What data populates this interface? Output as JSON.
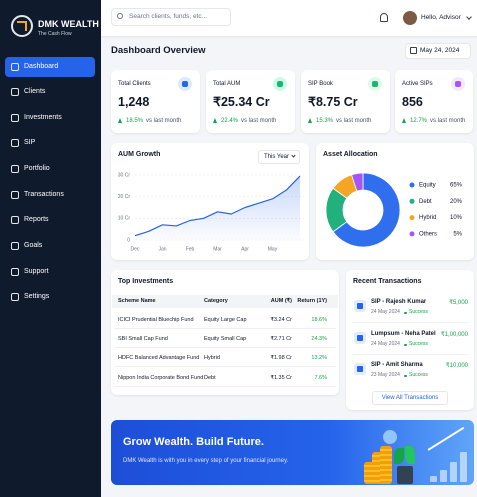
{
  "brand": {
    "name": "DMK WEALTH",
    "tagline": "The Cash Flow"
  },
  "nav": [
    "Dashboard",
    "Clients",
    "Investments",
    "SIP",
    "Portfolio",
    "Transactions",
    "Reports",
    "Goals",
    "Support",
    "Settings"
  ],
  "search_placeholder": "Search clients, funds, etc...",
  "user": "Hello, Advisor",
  "page_title": "Dashboard Overview",
  "date": "May 24, 2024",
  "kpis": [
    {
      "label": "Total Clients",
      "value": "1,248",
      "change": "18.5%",
      "note": "vs last month"
    },
    {
      "label": "Total AUM",
      "value": "₹25.34 Cr",
      "change": "22.4%",
      "note": "vs last month"
    },
    {
      "label": "SIP Book",
      "value": "₹8.75 Cr",
      "change": "15.3%",
      "note": "vs last month"
    },
    {
      "label": "Active SIPs",
      "value": "856",
      "change": "12.7%",
      "note": "vs last month"
    }
  ],
  "aum_period": "This Year",
  "chart_data": [
    {
      "type": "line",
      "title": "AUM Growth",
      "categories": [
        "Dec",
        null,
        "Jan",
        null,
        "Feb",
        null,
        "Mar",
        null,
        "Apr",
        null,
        "May",
        null,
        null
      ],
      "values": [
        2,
        4,
        7,
        6.5,
        9,
        10,
        13,
        12,
        15,
        17,
        19,
        23,
        29.5
      ],
      "color": "#2563eb",
      "ylim": [
        0,
        30
      ],
      "yticks": [
        0,
        {
          "value": 10,
          "label": "10 Cr"
        },
        {
          "value": 20,
          "label": "20 Cr"
        },
        {
          "value": 30,
          "label": "30 Cr"
        }
      ],
      "grid": true
    },
    {
      "type": "pie",
      "title": "Asset Allocation",
      "categories": [
        "Equity",
        "Debt",
        "Hybrid",
        "Others"
      ],
      "values": [
        65,
        20,
        10,
        5
      ],
      "value_labels": [
        "65%",
        "20%",
        "10%",
        "5%"
      ],
      "colors": [
        "#2f6fed",
        "#22b07d",
        "#f5a524",
        "#a855f7"
      ]
    }
  ],
  "investments": {
    "title": "Top Investments",
    "headers": [
      "Scheme Name",
      "Category",
      "AUM (₹)",
      "Return (1Y)"
    ],
    "rows": [
      [
        "ICICI Prudential Bluechip Fund",
        "Equity Large Cap",
        "₹3.24 Cr",
        "18.6%"
      ],
      [
        "SBI Small Cap Fund",
        "Equity Small Cap",
        "₹2.71 Cr",
        "24.3%"
      ],
      [
        "HDFC Balanced Advantage Fund",
        "Hybrid",
        "₹1.98 Cr",
        "13.2%"
      ],
      [
        "Nippon India Corporate Bond Fund",
        "Debt",
        "₹1.35 Cr",
        "7.6%"
      ]
    ]
  },
  "transactions": {
    "title": "Recent Transactions",
    "items": [
      {
        "title": "SIP - Rajesh Kumar",
        "date": "24 May 2024",
        "status": "Success",
        "amount": "₹5,000"
      },
      {
        "title": "Lumpsum - Neha Patel",
        "date": "24 May 2024",
        "status": "Success",
        "amount": "₹1,00,000"
      },
      {
        "title": "SIP - Amit Sharma",
        "date": "23 May 2024",
        "status": "Success",
        "amount": "₹10,000"
      }
    ],
    "button": "View All Transactions"
  },
  "banner": {
    "title": "Grow Wealth. Build Future.",
    "text": "DMK Wealth is with you in every step of your financial journey."
  }
}
